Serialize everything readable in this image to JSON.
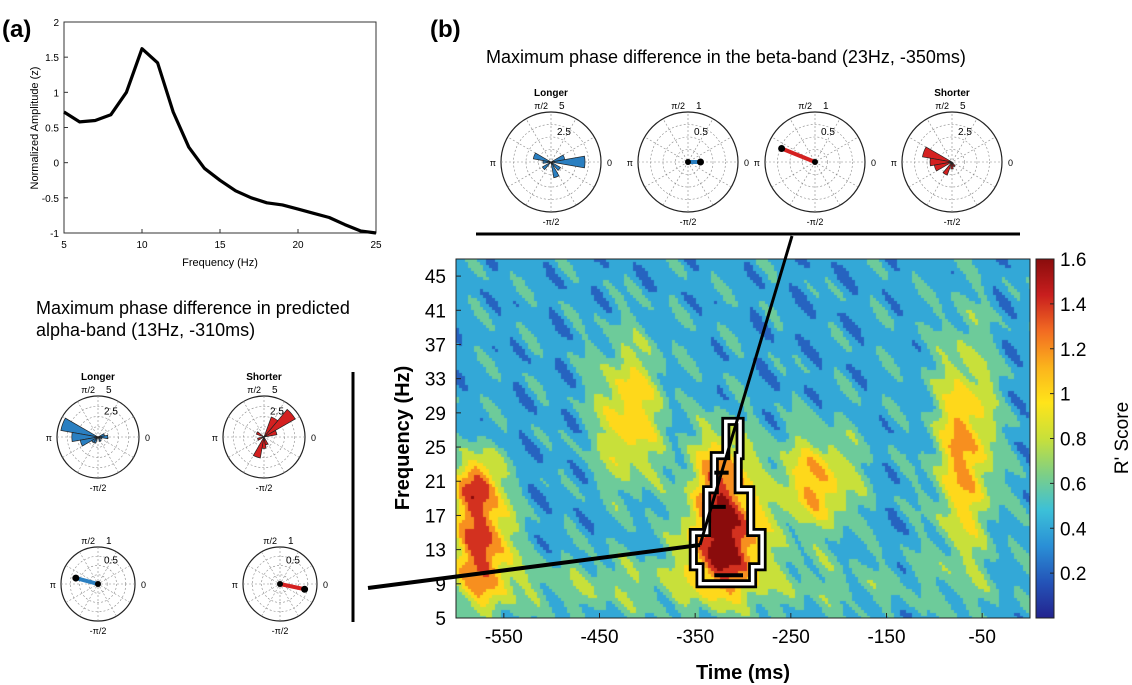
{
  "panel_labels": [
    "(a)",
    "(b)"
  ],
  "colors": {
    "longer": "#2a7fc1",
    "shorter": "#d42020",
    "line": "#000000",
    "colormap": [
      "#23238e",
      "#2454b8",
      "#2a8fd6",
      "#3cc0d8",
      "#7dcf86",
      "#c8e03a",
      "#ffe41a",
      "#fbb31c",
      "#f26b22",
      "#c81e1e",
      "#8a0c0c"
    ]
  },
  "chart_data": [
    {
      "type": "line",
      "panel": "(a)",
      "xlabel": "Frequency (Hz)",
      "ylabel": "Normalized Amplitude (z)",
      "xlim": [
        5,
        25
      ],
      "ylim": [
        -1,
        2
      ],
      "xticks": [
        "5",
        "10",
        "15",
        "20",
        "25"
      ],
      "yticks": [
        "-1",
        "-0.5",
        "0",
        "0.5",
        "1",
        "1.5",
        "2"
      ],
      "x": [
        5,
        6,
        7,
        8,
        9,
        10,
        11,
        12,
        13,
        14,
        15,
        16,
        17,
        18,
        19,
        20,
        21,
        22,
        23,
        24,
        25
      ],
      "series": [
        {
          "values": [
            0.72,
            0.58,
            0.6,
            0.68,
            1.0,
            1.62,
            1.42,
            0.72,
            0.22,
            -0.08,
            -0.25,
            -0.4,
            -0.5,
            -0.57,
            -0.6,
            -0.66,
            -0.72,
            -0.78,
            -0.88,
            -0.97,
            -1.0
          ]
        }
      ]
    },
    {
      "type": "heatmap",
      "panel": "(b)",
      "xlabel": "Time (ms)",
      "ylabel": "Frequency (Hz)",
      "xlim": [
        -600,
        0
      ],
      "ylim": [
        5,
        47
      ],
      "xticks": [
        "-550",
        "-450",
        "-350",
        "-250",
        "-150",
        "-50"
      ],
      "yticks": [
        "5",
        "9",
        "13",
        "17",
        "21",
        "25",
        "29",
        "33",
        "37",
        "41",
        "45"
      ],
      "colorbar": {
        "label": "R' Score",
        "range": [
          0,
          1.6
        ],
        "ticks": [
          "0.2",
          "0.4",
          "0.6",
          "0.8",
          "1",
          "1.2",
          "1.4",
          "1.6"
        ]
      },
      "background_value": 0.4,
      "blobs": [
        {
          "t": -575,
          "f": 14,
          "st": 22,
          "sf": 5,
          "amp": 0.95
        },
        {
          "t": -580,
          "f": 21,
          "st": 15,
          "sf": 2.5,
          "amp": 0.7
        },
        {
          "t": -320,
          "f": 14,
          "st": 28,
          "sf": 4,
          "amp": 1.15
        },
        {
          "t": -325,
          "f": 22,
          "st": 22,
          "sf": 4,
          "amp": 0.75
        },
        {
          "t": -420,
          "f": 29,
          "st": 25,
          "sf": 6,
          "amp": 0.65
        },
        {
          "t": -225,
          "f": 21,
          "st": 30,
          "sf": 4,
          "amp": 0.7
        },
        {
          "t": -70,
          "f": 25,
          "st": 22,
          "sf": 9,
          "amp": 0.75
        },
        {
          "t": -400,
          "f": 9,
          "st": 220,
          "sf": 2.5,
          "amp": 0.25
        }
      ],
      "significant_cluster": "black-white outline around -350 to -270 ms, 9 to 28 Hz"
    },
    {
      "type": "polar",
      "title": "Maximum phase difference in predicted alpha-band (13Hz, -310ms)",
      "plots": [
        {
          "label": "Longer",
          "rmax": 5,
          "rticks": [
            "2.5",
            "5"
          ],
          "kind": "rose",
          "color": "longer",
          "bins_deg": [
            0,
            20,
            160,
            180,
            200,
            220,
            240,
            300,
            340
          ],
          "counts": [
            1.2,
            0.8,
            4.6,
            3.2,
            2.2,
            0.9,
            0.8,
            0.6,
            0.5
          ]
        },
        {
          "label": "Shorter",
          "rmax": 5,
          "rticks": [
            "2.5",
            "5"
          ],
          "kind": "rose",
          "color": "shorter",
          "bins_deg": [
            40,
            60,
            20,
            250,
            270,
            290,
            150,
            200
          ],
          "counts": [
            4.4,
            2.6,
            1.6,
            2.6,
            1.4,
            1.0,
            1.0,
            0.8
          ]
        },
        {
          "rmax": 1,
          "rticks": [
            "0.5",
            "1"
          ],
          "kind": "vector",
          "color": "longer",
          "angle_deg": 165,
          "length": 0.62
        },
        {
          "rmax": 1,
          "rticks": [
            "0.5",
            "1"
          ],
          "kind": "vector",
          "color": "shorter",
          "angle_deg": 348,
          "length": 0.68
        }
      ]
    },
    {
      "type": "polar",
      "title": "Maximum phase difference in the beta-band (23Hz, -350ms)",
      "plots": [
        {
          "label": "Longer",
          "rmax": 5,
          "rticks": [
            "2.5",
            "5"
          ],
          "kind": "rose",
          "color": "longer",
          "bins_deg": [
            0,
            20,
            160,
            180,
            220,
            290,
            320
          ],
          "counts": [
            3.4,
            1.4,
            1.8,
            0.8,
            1.0,
            1.6,
            1.1
          ]
        },
        {
          "rmax": 1,
          "rticks": [
            "0.5",
            "1"
          ],
          "kind": "vector",
          "color": "longer",
          "angle_deg": 0,
          "length": 0.25
        },
        {
          "rmax": 1,
          "rticks": [
            "0.5",
            "1"
          ],
          "kind": "vector",
          "color": "shorter",
          "angle_deg": 158,
          "length": 0.72
        },
        {
          "label": "Shorter",
          "rmax": 5,
          "rticks": [
            "2.5",
            "5"
          ],
          "kind": "rose",
          "color": "shorter",
          "bins_deg": [
            160,
            180,
            200,
            240,
            270,
            300
          ],
          "counts": [
            3.0,
            2.2,
            1.8,
            1.4,
            0.7,
            0.5
          ]
        }
      ]
    }
  ],
  "polar_labels": {
    "top": "π/2",
    "left": "π",
    "right": "0",
    "bottom": "-π/2"
  }
}
